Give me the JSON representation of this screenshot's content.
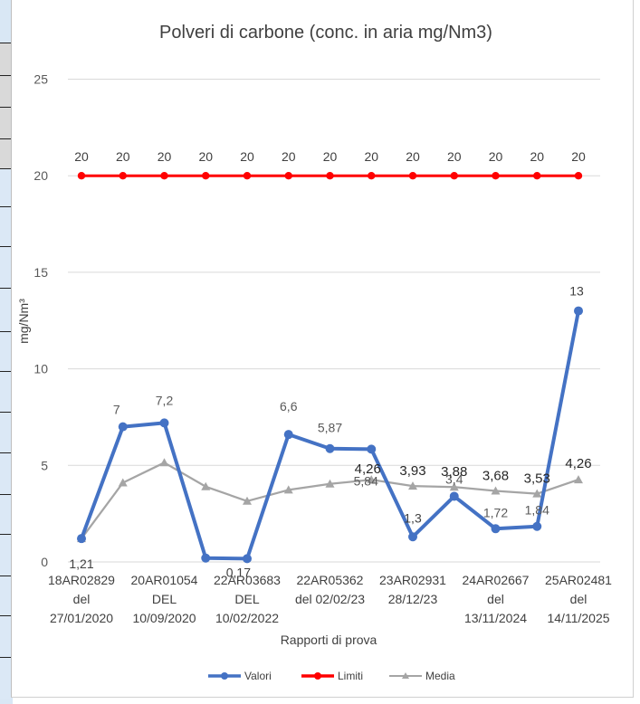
{
  "chart_data": {
    "type": "line",
    "title": "Polveri di carbone (conc. in aria mg/Nm3)",
    "xlabel": "Rapporti di prova",
    "ylabel": "mg/Nm³",
    "ylim": [
      0,
      25
    ],
    "yticks": [
      "0",
      "5",
      "10",
      "15",
      "20",
      "25"
    ],
    "grid": true,
    "legend_position": "bottom",
    "categories": [
      [
        "18AR02829",
        "del",
        "27/01/2020"
      ],
      [
        "",
        "",
        ""
      ],
      [
        "20AR01054",
        "DEL",
        "10/09/2020"
      ],
      [
        "",
        "",
        ""
      ],
      [
        "22AR03683",
        "DEL",
        "10/02/2022"
      ],
      [
        "",
        "",
        ""
      ],
      [
        "22AR05362",
        "del 02/02/23",
        ""
      ],
      [
        "",
        "",
        ""
      ],
      [
        "23AR02931",
        "28/12/23",
        ""
      ],
      [
        "",
        "",
        ""
      ],
      [
        "24AR02667",
        "del",
        "13/11/2024"
      ],
      [
        "",
        "",
        ""
      ],
      [
        "25AR02481",
        "del",
        "14/11/2025"
      ]
    ],
    "series": [
      {
        "name": "Valori",
        "color": "#4472c4",
        "values": [
          1.21,
          7,
          7.2,
          0.2,
          0.17,
          6.6,
          5.87,
          5.84,
          1.3,
          3.4,
          1.72,
          1.84,
          13
        ],
        "labels": [
          "1,21",
          "7",
          "7,2",
          "",
          "0,17",
          "6,6",
          "5,87",
          "5,84",
          "1,3",
          "3,4",
          "1,72",
          "1,84",
          "13"
        ]
      },
      {
        "name": "Limiti",
        "color": "#ff0000",
        "values": [
          20,
          20,
          20,
          20,
          20,
          20,
          20,
          20,
          20,
          20,
          20,
          20,
          20
        ],
        "labels": [
          "20",
          "20",
          "20",
          "20",
          "20",
          "20",
          "20",
          "20",
          "20",
          "20",
          "20",
          "20",
          "20"
        ]
      },
      {
        "name": "Media",
        "color": "#a5a5a5",
        "values": [
          1.21,
          4.1,
          5.14,
          3.9,
          3.15,
          3.73,
          4.04,
          4.26,
          3.93,
          3.88,
          3.68,
          3.53,
          4.26
        ],
        "labels": [
          "",
          "",
          "",
          "",
          "",
          "",
          "",
          "4,26",
          "3,93",
          "3,88",
          "3,68",
          "3,53",
          "4,26"
        ]
      }
    ]
  }
}
